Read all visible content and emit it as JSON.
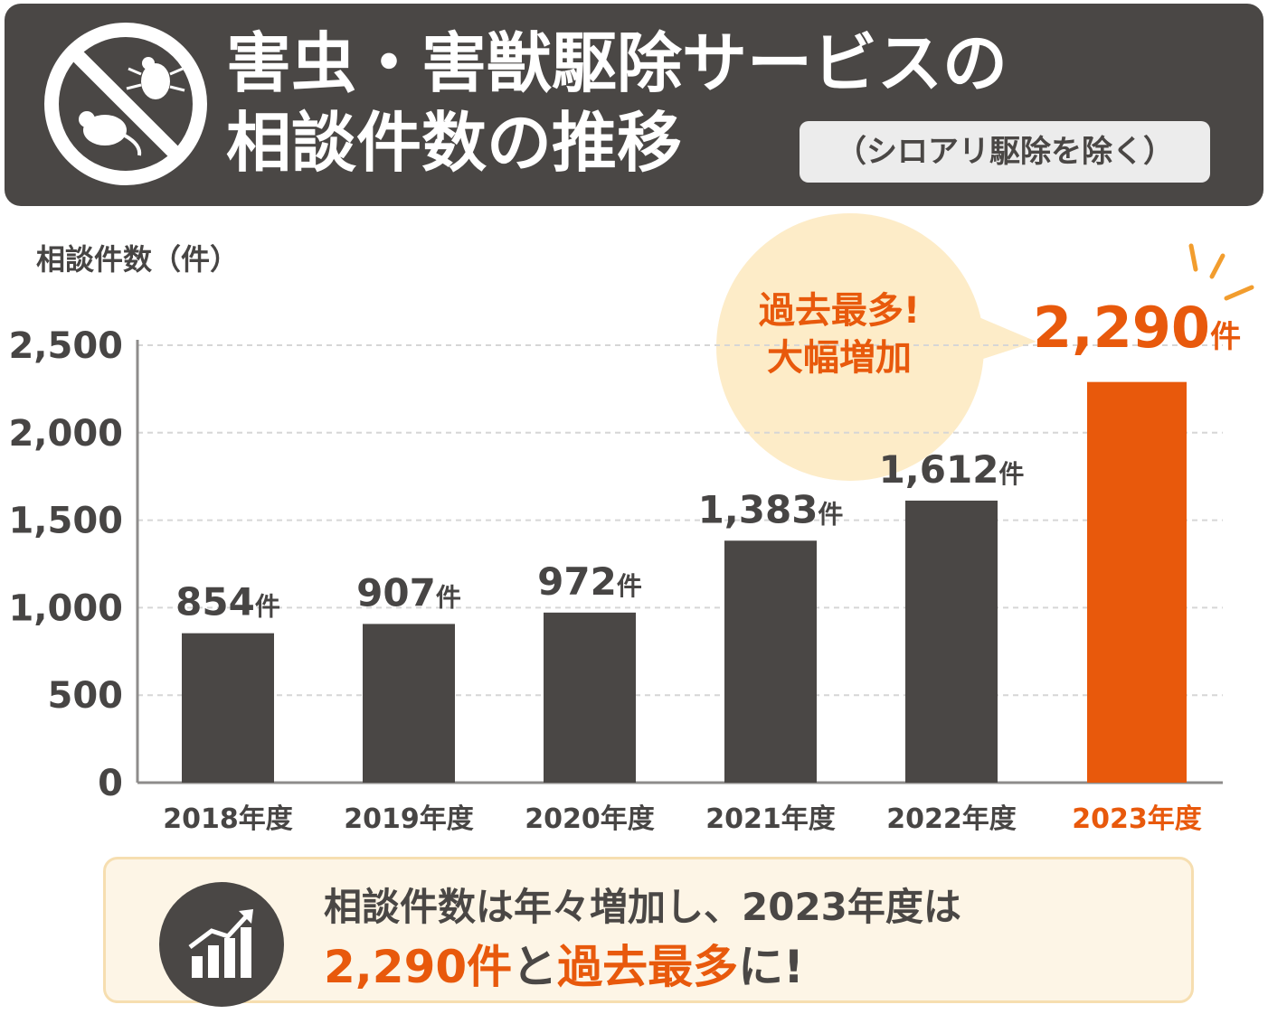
{
  "header": {
    "title_line1": "害虫・害獣駆除サービスの",
    "title_line2": "相談件数の推移",
    "subtitle": "（シロアリ駆除を除く）"
  },
  "callout": {
    "line1": "過去最多!",
    "line2": "大幅増加"
  },
  "summary": {
    "line1": "相談件数は年々増加し、2023年度は",
    "line2_part1": "2,290件",
    "line2_part2": "と",
    "line2_part3": "過去最多",
    "line2_part4": "に!"
  },
  "colors": {
    "bar": "#4a4745",
    "highlight": "#e8590c",
    "bubble": "#fdecc8"
  },
  "chart_data": {
    "type": "bar",
    "ylabel": "相談件数（件）",
    "categories": [
      "2018年度",
      "2019年度",
      "2020年度",
      "2021年度",
      "2022年度",
      "2023年度"
    ],
    "values": [
      854,
      907,
      972,
      1383,
      1612,
      2290
    ],
    "data_labels": [
      "854",
      "907",
      "972",
      "1,383",
      "1,612",
      "2,290"
    ],
    "label_unit": "件",
    "yticks": [
      "0",
      "500",
      "1,000",
      "1,500",
      "2,000",
      "2,500"
    ],
    "ylim": [
      0,
      2500
    ],
    "grid": true,
    "highlight_index": 5
  }
}
